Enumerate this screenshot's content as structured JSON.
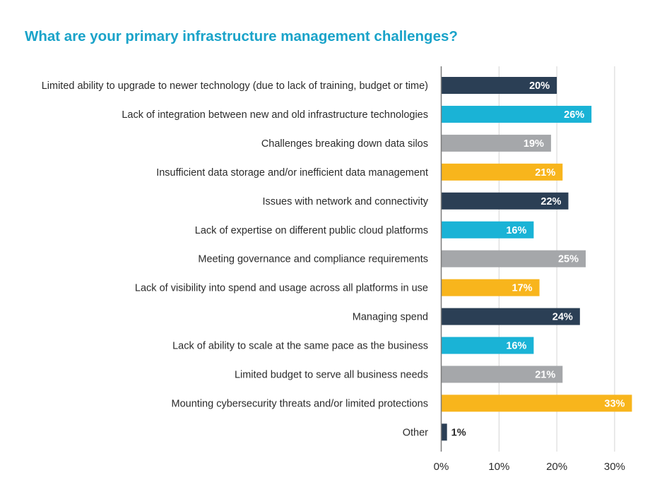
{
  "chart_data": {
    "type": "bar",
    "orientation": "horizontal",
    "title": "What are your primary infrastructure management challenges?",
    "categories": [
      "Limited ability to upgrade to newer technology (due to lack of training, budget or time)",
      "Lack of integration between new and old infrastructure technologies",
      "Challenges breaking down data silos",
      "Insufficient data storage and/or inefficient data management",
      "Issues with network and connectivity",
      "Lack of expertise on different public cloud platforms",
      "Meeting governance and compliance requirements",
      "Lack of visibility into spend and usage across all platforms in use",
      "Managing spend",
      "Lack of ability to scale at the same pace as the business",
      "Limited budget to serve all business needs",
      "Mounting cybersecurity threats and/or limited protections",
      "Other"
    ],
    "values": [
      20,
      26,
      19,
      21,
      22,
      16,
      25,
      17,
      24,
      16,
      21,
      33,
      1
    ],
    "data_labels": [
      "20%",
      "26%",
      "19%",
      "21%",
      "22%",
      "16%",
      "25%",
      "17%",
      "24%",
      "16%",
      "21%",
      "33%",
      "1%"
    ],
    "bar_colors": [
      "#2b3f55",
      "#1ab3d6",
      "#a5a7aa",
      "#f8b51c",
      "#2b3f55",
      "#1ab3d6",
      "#a5a7aa",
      "#f8b51c",
      "#2b3f55",
      "#1ab3d6",
      "#a5a7aa",
      "#f8b51c",
      "#2b3f55"
    ],
    "xticks": [
      0,
      10,
      20,
      30
    ],
    "xtick_labels": [
      "0%",
      "10%",
      "20%",
      "30%"
    ],
    "xlim": [
      0,
      33
    ],
    "xlabel": "",
    "ylabel": "",
    "grid": true,
    "legend": "none"
  },
  "colors": {
    "title": "#1aa3c9",
    "label_text": "#2b2b2b",
    "value_label_inside": "#ffffff",
    "value_label_outside": "#2b2b2b",
    "grid": "#d4d4d4",
    "axis": "#7a7a7a"
  }
}
